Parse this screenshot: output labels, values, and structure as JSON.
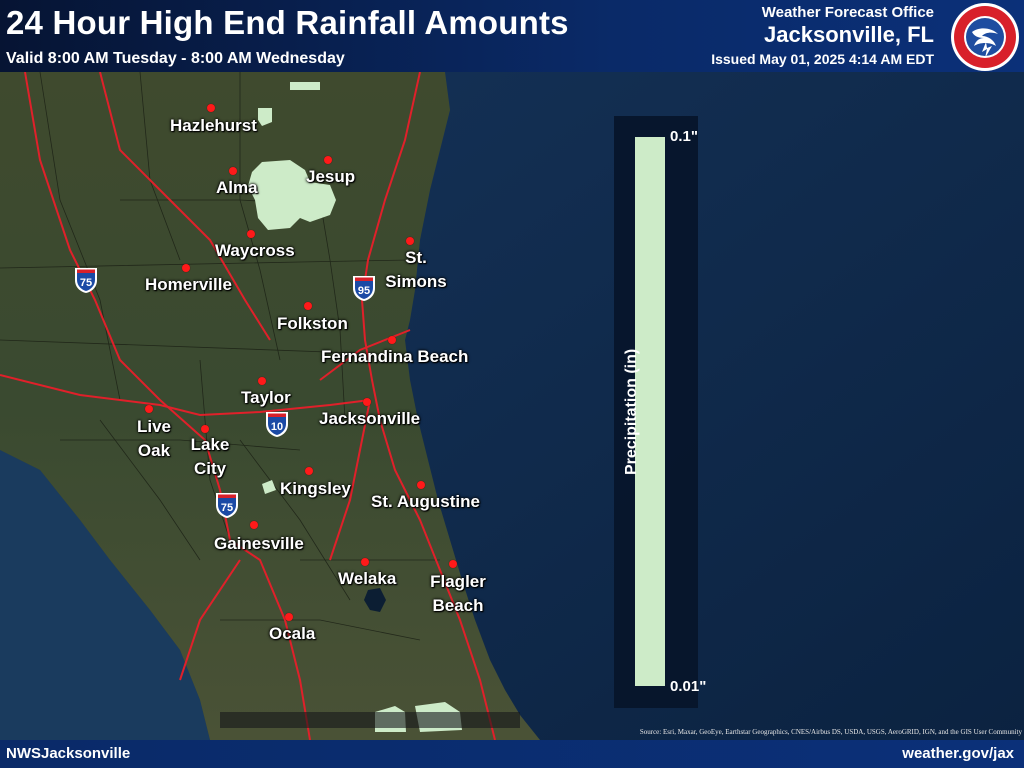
{
  "header": {
    "title": "24 Hour High End Rainfall Amounts",
    "valid": "Valid 8:00 AM Tuesday - 8:00 AM Wednesday",
    "office": "Weather Forecast Office",
    "city": "Jacksonville, FL",
    "issued": "Issued May 01, 2025 4:14 AM EDT",
    "logo_text": "NATIONAL WEATHER SERVICE"
  },
  "footer": {
    "left": "NWSJacksonville",
    "right": "weather.gov/jax"
  },
  "attribution": "Source: Esri, Maxar, GeoEye, Earthstar Geographics, CNES/Airbus DS, USDA, USGS, AeroGRID, IGN, and the GIS User Community",
  "legend": {
    "title": "Precipitation (in)",
    "max_label": "0.1\"",
    "min_label": "0.01\"",
    "fill_color": "#cdebc8"
  },
  "cities": [
    {
      "name": "Hazlehurst"
    },
    {
      "name": "Alma"
    },
    {
      "name": "Jesup"
    },
    {
      "name": "Waycross"
    },
    {
      "name": "St. Simons"
    },
    {
      "name": "Homerville"
    },
    {
      "name": "Folkston"
    },
    {
      "name": "Fernandina Beach"
    },
    {
      "name": "Taylor"
    },
    {
      "name": "Jacksonville"
    },
    {
      "name": "Live Oak"
    },
    {
      "name": "Lake City"
    },
    {
      "name": "Kingsley"
    },
    {
      "name": "St. Augustine"
    },
    {
      "name": "Gainesville"
    },
    {
      "name": "Welaka"
    },
    {
      "name": "Flagler Beach"
    },
    {
      "name": "Ocala"
    }
  ],
  "highways": [
    {
      "name": "I-75",
      "number": "75"
    },
    {
      "name": "I-95",
      "number": "95"
    },
    {
      "name": "I-10",
      "number": "10"
    },
    {
      "name": "I-75",
      "number": "75"
    }
  ],
  "colors": {
    "ocean": "#0f2a4d",
    "land": "#3d4a2d",
    "roads": "#e0202a",
    "rain_area": "#cdebc8",
    "city_dot": "#ff1a1a"
  }
}
